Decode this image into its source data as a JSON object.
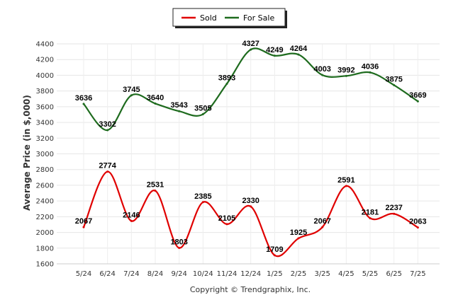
{
  "chart_data": {
    "type": "line",
    "categories": [
      "5/24",
      "6/24",
      "7/24",
      "8/24",
      "9/24",
      "10/24",
      "11/24",
      "12/24",
      "1/25",
      "2/25",
      "3/25",
      "4/25",
      "5/25",
      "6/25",
      "7/25"
    ],
    "series": [
      {
        "name": "Sold",
        "color": "#e00000",
        "values": [
          2067,
          2774,
          2146,
          2531,
          1803,
          2385,
          2105,
          2330,
          1709,
          1925,
          2067,
          2591,
          2181,
          2237,
          2063
        ]
      },
      {
        "name": "For Sale",
        "color": "#1e6b1e",
        "values": [
          3636,
          3302,
          3745,
          3640,
          3543,
          3505,
          3893,
          4327,
          4249,
          4264,
          4003,
          3992,
          4036,
          3875,
          3669
        ]
      }
    ],
    "ylabel": "Average Price (in $,000)",
    "ylim": [
      1600,
      4400
    ],
    "yticks": [
      1600,
      1800,
      2000,
      2200,
      2400,
      2600,
      2800,
      3000,
      3200,
      3400,
      3600,
      3800,
      4000,
      4200,
      4400
    ],
    "grid": true,
    "legend_position": "top-center"
  },
  "credit": "Copyright © Trendgraphix, Inc."
}
